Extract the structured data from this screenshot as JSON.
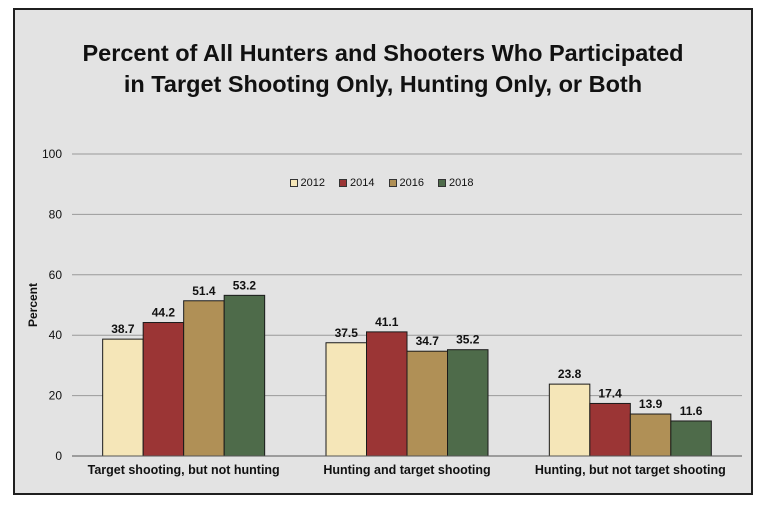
{
  "chart_data": {
    "type": "bar",
    "title_lines": [
      "Percent of All Hunters and Shooters Who Participated",
      "in Target Shooting Only, Hunting Only, or Both"
    ],
    "xlabel": "",
    "ylabel": "Percent",
    "ylim": [
      0,
      100
    ],
    "yticks": [
      0,
      20,
      40,
      60,
      80,
      100
    ],
    "grid": true,
    "legend_position": "top-center",
    "categories": [
      "Target shooting, but not hunting",
      "Hunting and target shooting",
      "Hunting, but not target shooting"
    ],
    "series": [
      {
        "name": "2012",
        "color": "#f5e6b8",
        "values": [
          38.7,
          37.5,
          23.8
        ]
      },
      {
        "name": "2014",
        "color": "#9b3535",
        "values": [
          44.2,
          41.1,
          17.4
        ]
      },
      {
        "name": "2016",
        "color": "#b09056",
        "values": [
          51.4,
          34.7,
          13.9
        ]
      },
      {
        "name": "2018",
        "color": "#4e6b4a",
        "values": [
          53.2,
          35.2,
          11.6
        ]
      }
    ]
  }
}
